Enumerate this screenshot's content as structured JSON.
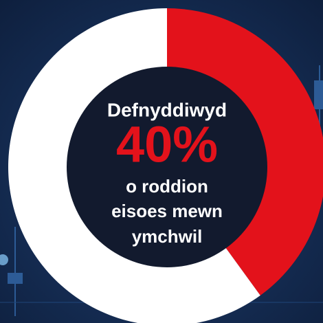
{
  "chart_data": {
    "type": "donut",
    "values": [
      40,
      60
    ],
    "value_labels": [
      "40%",
      null
    ],
    "colors": [
      "#e3121b",
      "#ffffff"
    ],
    "label_above": "Defnyddiwyd",
    "label_below": [
      "o roddion",
      "eisoes mewn",
      "ymchwil"
    ]
  }
}
